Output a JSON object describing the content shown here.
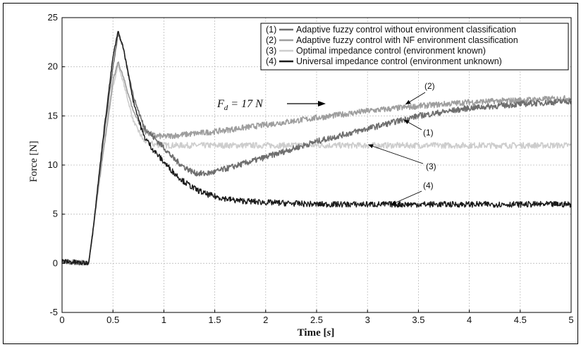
{
  "chart_data": {
    "type": "line",
    "xlabel_prefix": "Time [",
    "xlabel_unit": "s",
    "xlabel_suffix": "]",
    "ylabel": "Force [N]",
    "xlim": [
      0,
      5
    ],
    "ylim": [
      -5,
      25
    ],
    "xticks": [
      "0",
      "0.5",
      "1",
      "1.5",
      "2",
      "2.5",
      "3",
      "3.5",
      "4",
      "4.5",
      "5"
    ],
    "yticks": [
      "-5",
      "0",
      "5",
      "10",
      "15",
      "20",
      "25"
    ],
    "grid": true,
    "legend_position": "top-right",
    "legend": [
      {
        "tag": "(1)",
        "label": "Adaptive fuzzy control without environment classification"
      },
      {
        "tag": "(2)",
        "label": "Adaptive fuzzy control with NF environment classification"
      },
      {
        "tag": "(3)",
        "label": "Optimal impedance control (environment known)"
      },
      {
        "tag": "(4)",
        "label": "Universal impedance control (environment unknown)"
      }
    ],
    "reference_annotation": {
      "symbol": "F",
      "subscript": "d",
      "text": " = 17 N",
      "y": 17
    },
    "series_annotations": [
      "(2)",
      "(1)",
      "(3)",
      "(4)"
    ],
    "colors": {
      "s1": "#6e6e6e",
      "s2": "#9e9e9e",
      "s3": "#cdcdcd",
      "s4": "#1a1a1a"
    },
    "series": [
      {
        "tag": "(1)",
        "x": [
          0,
          0.26,
          0.3,
          0.4,
          0.5,
          0.55,
          0.6,
          0.7,
          0.8,
          0.9,
          1.0,
          1.1,
          1.2,
          1.3,
          1.4,
          1.5,
          2.0,
          2.5,
          3.0,
          3.5,
          4.0,
          4.5,
          5.0
        ],
        "y": [
          0.2,
          0,
          3,
          12,
          20,
          23.3,
          22,
          17,
          14,
          12.8,
          11.8,
          10.6,
          9.8,
          9.2,
          9.1,
          9.3,
          10.8,
          12.4,
          13.7,
          15.0,
          15.8,
          16.2,
          16.5
        ]
      },
      {
        "tag": "(2)",
        "x": [
          0,
          0.26,
          0.3,
          0.4,
          0.5,
          0.55,
          0.6,
          0.7,
          0.8,
          0.9,
          1.0,
          1.5,
          2.0,
          2.5,
          3.0,
          3.5,
          4.0,
          4.5,
          5.0
        ],
        "y": [
          0.2,
          0,
          3,
          11,
          18.5,
          20.5,
          19,
          15.5,
          13.5,
          13,
          12.9,
          13.4,
          14.1,
          14.8,
          15.5,
          16.0,
          16.4,
          16.6,
          16.8
        ]
      },
      {
        "tag": "(3)",
        "x": [
          0,
          0.26,
          0.3,
          0.4,
          0.5,
          0.55,
          0.6,
          0.7,
          0.8,
          0.9,
          1.0,
          1.5,
          2.0,
          2.5,
          3.0,
          3.5,
          4.0,
          4.5,
          5.0
        ],
        "y": [
          0.2,
          0,
          3,
          11,
          18,
          20.2,
          18.5,
          14.5,
          12.5,
          12.1,
          12,
          12,
          12,
          12,
          12,
          12,
          12,
          12,
          12
        ]
      },
      {
        "tag": "(4)",
        "x": [
          0,
          0.26,
          0.3,
          0.4,
          0.5,
          0.55,
          0.6,
          0.7,
          0.8,
          0.9,
          1.0,
          1.1,
          1.2,
          1.3,
          1.4,
          1.5,
          1.7,
          2.0,
          2.5,
          3.0,
          3.5,
          4.0,
          4.5,
          5.0
        ],
        "y": [
          0.2,
          0,
          3,
          12.5,
          21,
          23.6,
          22,
          16.5,
          13,
          11.5,
          10.3,
          9.2,
          8.3,
          7.6,
          7.1,
          6.8,
          6.4,
          6.2,
          6.0,
          6.0,
          6.0,
          6.0,
          6.0,
          6.0
        ]
      }
    ]
  }
}
